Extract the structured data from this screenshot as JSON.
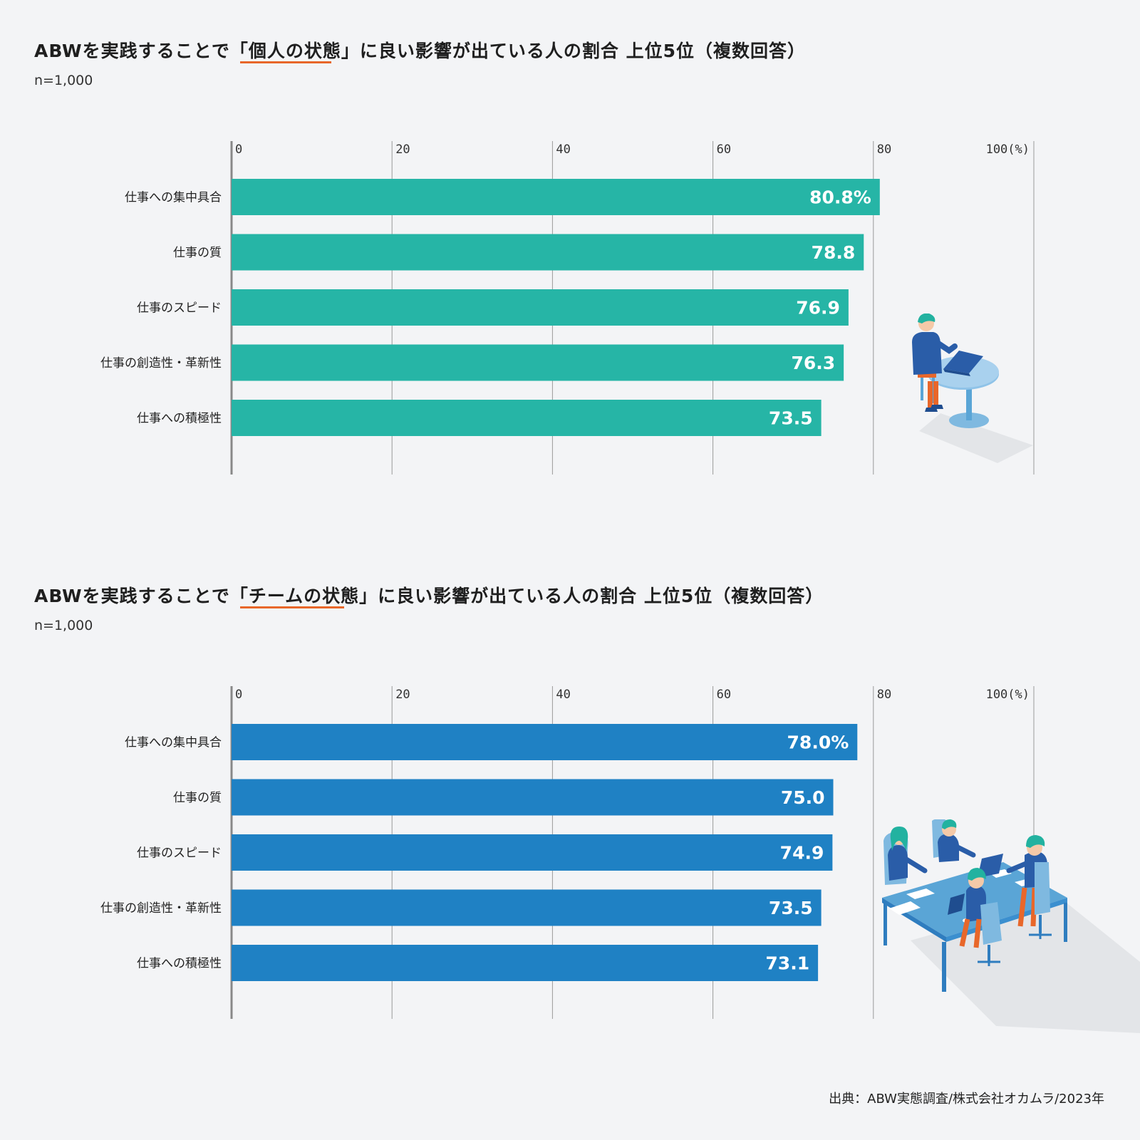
{
  "colors": {
    "background": "#f3f4f6",
    "accent": "#e8672a",
    "chart1_bar": "#26b5a6",
    "chart2_bar": "#1f81c4",
    "grid": "#9a9a9a"
  },
  "chart_data": [
    {
      "type": "bar",
      "orientation": "horizontal",
      "title": "ABWを実践することで「個人の状態」に良い影響が出ている人の割合 上位5位（複数回答）",
      "title_parts": {
        "before": "ABWを実践することで「",
        "highlight": "個人の状態",
        "after": "」に良い影響が出ている人の割合 上位5位（複数回答）"
      },
      "subtitle": "n=1,000",
      "categories": [
        "仕事への集中具合",
        "仕事の質",
        "仕事のスピード",
        "仕事の創造性・革新性",
        "仕事への積極性"
      ],
      "values": [
        80.8,
        78.8,
        76.9,
        76.3,
        73.5
      ],
      "value_labels": [
        "80.8%",
        "78.8",
        "76.9",
        "76.3",
        "73.5"
      ],
      "xlim": [
        0,
        100
      ],
      "xticks": [
        "0",
        "20",
        "40",
        "60",
        "80",
        "100(%)"
      ],
      "grid": true,
      "color": "#26b5a6",
      "illustration": "person-at-round-table-with-laptop"
    },
    {
      "type": "bar",
      "orientation": "horizontal",
      "title": "ABWを実践することで「チームの状態」に良い影響が出ている人の割合 上位5位（複数回答）",
      "title_parts": {
        "before": "ABWを実践することで「",
        "highlight": "チームの状態",
        "after": "」に良い影響が出ている人の割合 上位5位（複数回答）"
      },
      "subtitle": "n=1,000",
      "categories": [
        "仕事への集中具合",
        "仕事の質",
        "仕事のスピード",
        "仕事の創造性・革新性",
        "仕事への積極性"
      ],
      "values": [
        78.0,
        75.0,
        74.9,
        73.5,
        73.1
      ],
      "value_labels": [
        "78.0%",
        "75.0",
        "74.9",
        "73.5",
        "73.1"
      ],
      "xlim": [
        0,
        100
      ],
      "xticks": [
        "0",
        "20",
        "40",
        "60",
        "80",
        "100(%)"
      ],
      "grid": true,
      "color": "#1f81c4",
      "illustration": "team-meeting-at-table"
    }
  ],
  "source": "出典：ABW実態調査/株式会社オカムラ/2023年"
}
